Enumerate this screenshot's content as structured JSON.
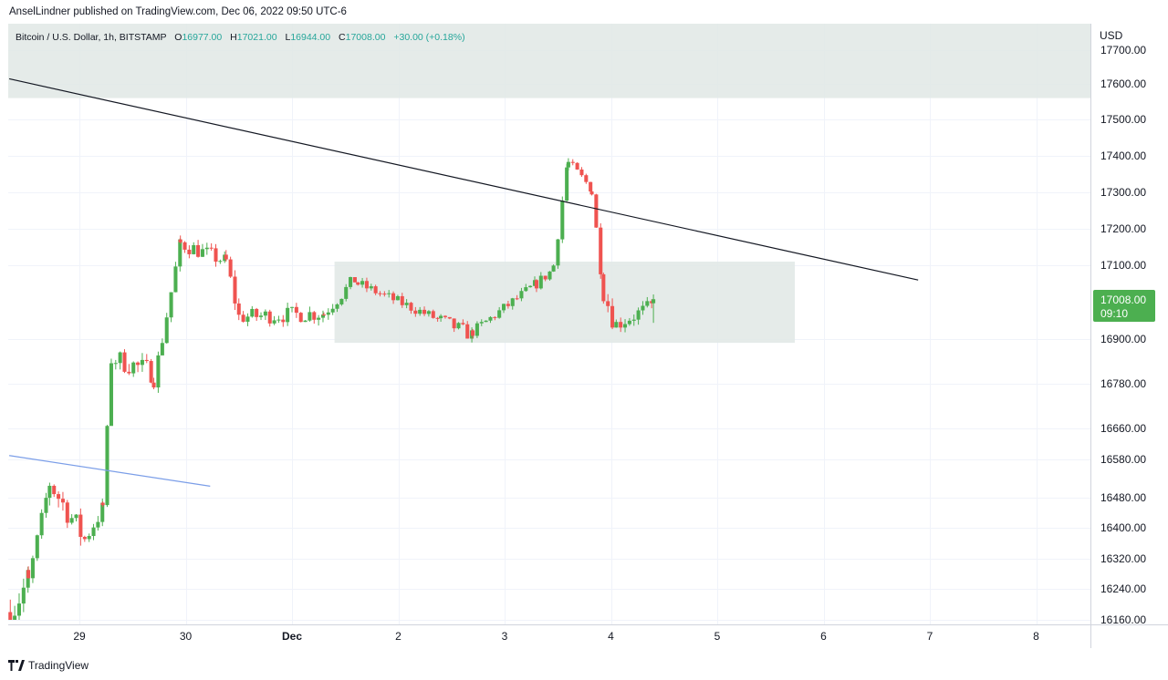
{
  "header": {
    "publish_line": "AnselLindner published on TradingView.com, Dec 06, 2022 09:50 UTC-6"
  },
  "legend": {
    "symbol": "Bitcoin / U.S. Dollar, 1h, BITSTAMP",
    "o_label": "O",
    "o_value": "16977.00",
    "h_label": "H",
    "h_value": "17021.00",
    "l_label": "L",
    "l_value": "16944.00",
    "c_label": "C",
    "c_value": "17008.00",
    "change": "+30.00 (+0.18%)"
  },
  "price_axis": {
    "currency": "USD",
    "ticks": [
      "17700.00",
      "17600.00",
      "17500.00",
      "17400.00",
      "17300.00",
      "17200.00",
      "17100.00",
      "16900.00",
      "16780.00",
      "16660.00",
      "16580.00",
      "16480.00",
      "16400.00",
      "16320.00",
      "16240.00",
      "16160.00"
    ],
    "last_price": "17008.00",
    "countdown": "09:10"
  },
  "time_axis": {
    "ticks": [
      "29",
      "30",
      "Dec",
      "2",
      "3",
      "4",
      "5",
      "6",
      "7",
      "8"
    ]
  },
  "footer": {
    "brand": "TradingView"
  },
  "colors": {
    "up": "#26a69a",
    "up_body": "#4caf50",
    "down": "#ef5350",
    "zone": "#e0e8e5",
    "last_price_bg": "#4caf50",
    "trendline": "#131722",
    "blue_line": "#7b9ee8"
  },
  "chart_data": {
    "type": "candlestick",
    "symbol": "Bitcoin / U.S. Dollar",
    "interval": "1h",
    "exchange": "BITSTAMP",
    "ylim": [
      16160,
      17740
    ],
    "grid": true,
    "x_ticks": [
      "29",
      "30",
      "Dec",
      "2",
      "3",
      "4",
      "5",
      "6",
      "7",
      "8"
    ],
    "y_ticks": [
      17700,
      17600,
      17500,
      17400,
      17300,
      17200,
      17100,
      16900,
      16780,
      16660,
      16580,
      16480,
      16400,
      16320,
      16240,
      16160
    ],
    "x_domain_days": [
      28.34,
      37.59
    ],
    "segments": [
      {
        "start": 28.35,
        "end": 28.52,
        "from": 16180,
        "to": 16260,
        "lo": 16150,
        "hi": 16360,
        "spread": 100
      },
      {
        "start": 28.52,
        "end": 28.72,
        "from": 16260,
        "to": 16520,
        "lo": 16200,
        "hi": 16540,
        "spread": 40
      },
      {
        "start": 28.72,
        "end": 29.05,
        "from": 16520,
        "to": 16370,
        "lo": 16340,
        "hi": 16540,
        "spread": 70
      },
      {
        "start": 29.05,
        "end": 29.22,
        "from": 16370,
        "to": 16450,
        "lo": 16330,
        "hi": 16500,
        "spread": 50
      },
      {
        "start": 29.22,
        "end": 29.3,
        "from": 16460,
        "to": 16840,
        "lo": 16430,
        "hi": 16860,
        "spread": 20
      },
      {
        "start": 29.3,
        "end": 29.7,
        "from": 16850,
        "to": 16810,
        "lo": 16750,
        "hi": 16980,
        "spread": 60
      },
      {
        "start": 29.7,
        "end": 29.78,
        "from": 16800,
        "to": 16880,
        "lo": 16720,
        "hi": 16930,
        "spread": 60
      },
      {
        "start": 29.78,
        "end": 29.95,
        "from": 16900,
        "to": 17160,
        "lo": 16880,
        "hi": 17220,
        "spread": 40
      },
      {
        "start": 29.95,
        "end": 30.38,
        "from": 17160,
        "to": 17110,
        "lo": 17040,
        "hi": 17220,
        "spread": 45
      },
      {
        "start": 30.38,
        "end": 30.5,
        "from": 17110,
        "to": 16960,
        "lo": 16900,
        "hi": 17130,
        "spread": 50
      },
      {
        "start": 30.5,
        "end": 31.3,
        "from": 16960,
        "to": 16970,
        "lo": 16880,
        "hi": 17040,
        "spread": 45
      },
      {
        "start": 31.3,
        "end": 31.62,
        "from": 16970,
        "to": 17070,
        "lo": 16890,
        "hi": 17140,
        "spread": 40
      },
      {
        "start": 31.62,
        "end": 32.4,
        "from": 17050,
        "to": 16950,
        "lo": 16920,
        "hi": 17080,
        "spread": 30
      },
      {
        "start": 32.4,
        "end": 32.7,
        "from": 16950,
        "to": 16910,
        "lo": 16870,
        "hi": 16990,
        "spread": 40
      },
      {
        "start": 32.7,
        "end": 33.3,
        "from": 16920,
        "to": 17050,
        "lo": 16900,
        "hi": 17080,
        "spread": 30
      },
      {
        "start": 33.3,
        "end": 33.46,
        "from": 17050,
        "to": 17090,
        "lo": 16990,
        "hi": 17110,
        "spread": 30
      },
      {
        "start": 33.46,
        "end": 33.6,
        "from": 17100,
        "to": 17400,
        "lo": 17080,
        "hi": 17420,
        "spread": 40
      },
      {
        "start": 33.6,
        "end": 33.82,
        "from": 17380,
        "to": 17310,
        "lo": 17260,
        "hi": 17390,
        "spread": 30
      },
      {
        "start": 33.82,
        "end": 33.93,
        "from": 17300,
        "to": 17030,
        "lo": 17000,
        "hi": 17320,
        "spread": 40
      },
      {
        "start": 33.93,
        "end": 34.05,
        "from": 17030,
        "to": 16930,
        "lo": 16880,
        "hi": 17060,
        "spread": 60
      },
      {
        "start": 34.05,
        "end": 34.4,
        "from": 16940,
        "to": 16990,
        "lo": 16920,
        "hi": 17100,
        "spread": 45
      }
    ],
    "last_candle": {
      "open": 16977,
      "high": 17021,
      "low": 16944,
      "close": 17008
    },
    "annotations": [
      {
        "type": "rectangle",
        "price_top": 17740,
        "price_bottom": 17560,
        "color": "#e0e8e5"
      },
      {
        "type": "rectangle",
        "day_start": 31.4,
        "day_end": 35.73,
        "price_top": 17110,
        "price_bottom": 16890,
        "color": "#e0e8e5"
      },
      {
        "type": "trendline",
        "p1_day": 28.34,
        "p1_price": 17615,
        "p2_day": 36.89,
        "p2_price": 17060,
        "color": "#131722"
      },
      {
        "type": "trendline",
        "p1_day": 28.34,
        "p1_price": 16590,
        "p2_day": 30.23,
        "p2_price": 16510,
        "color": "#7b9ee8"
      }
    ]
  }
}
